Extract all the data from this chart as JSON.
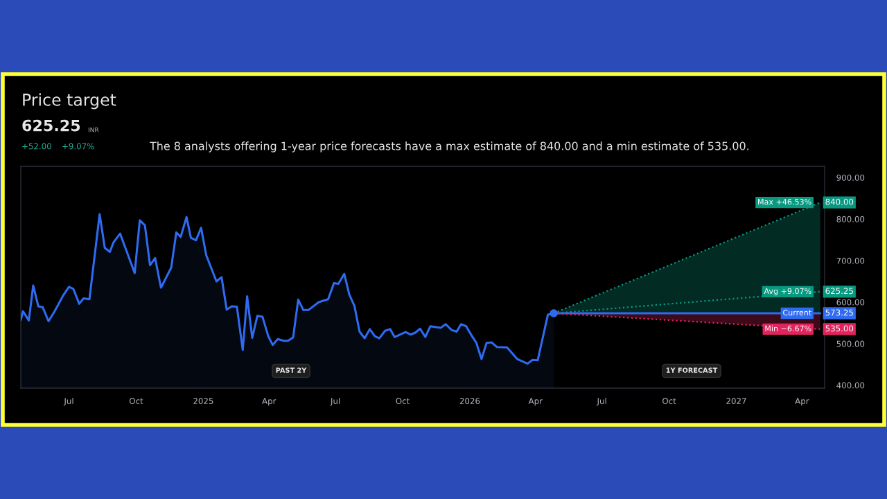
{
  "chart_data": {
    "type": "line",
    "title": "Price target",
    "legend": "right",
    "annotations": [
      "625.25",
      "INR",
      "+52.00",
      "+9.07%",
      "The 8 analysts offering 1-year price forecasts have a max estimate of 840.00 and a min estimate of 535.00.",
      "PAST 2Y",
      "1Y FORECAST"
    ],
    "xlim": [
      "2024-04-26",
      "2027-05-02"
    ],
    "xticks": [
      {
        "value": "2024-07-01",
        "label": "Jul"
      },
      {
        "value": "2024-10-01",
        "label": "Oct"
      },
      {
        "value": "2025-01-01",
        "label": "2025"
      },
      {
        "value": "2025-04-01",
        "label": "Apr"
      },
      {
        "value": "2025-07-01",
        "label": "Jul"
      },
      {
        "value": "2025-10-01",
        "label": "Oct"
      },
      {
        "value": "2026-01-01",
        "label": "2026"
      },
      {
        "value": "2026-04-01",
        "label": "Apr"
      },
      {
        "value": "2026-07-01",
        "label": "Jul"
      },
      {
        "value": "2026-10-01",
        "label": "Oct"
      },
      {
        "value": "2027-01-01",
        "label": "2027"
      },
      {
        "value": "2027-04-01",
        "label": "Apr"
      }
    ],
    "ylim": [
      393,
      927
    ],
    "yticks": [
      {
        "value": 400,
        "label": "400.00"
      },
      {
        "value": 500,
        "label": "500.00"
      },
      {
        "value": 600,
        "label": "600.00"
      },
      {
        "value": 700,
        "label": "700.00"
      },
      {
        "value": 800,
        "label": "800.00"
      },
      {
        "value": 900,
        "label": "900.00"
      }
    ],
    "series": [
      {
        "type": "area",
        "color": "#2f6bf0",
        "x": [
          "2024-04-26",
          "2024-04-29",
          "2024-05-07",
          "2024-05-13",
          "2024-05-20",
          "2024-05-26",
          "2024-06-03",
          "2024-06-11",
          "2024-06-23",
          "2024-07-01",
          "2024-07-07",
          "2024-07-15",
          "2024-07-21",
          "2024-07-29",
          "2024-08-12",
          "2024-08-19",
          "2024-08-26",
          "2024-08-31",
          "2024-09-09",
          "2024-09-29",
          "2024-10-06",
          "2024-10-13",
          "2024-10-20",
          "2024-10-27",
          "2024-11-04",
          "2024-11-18",
          "2024-11-25",
          "2024-12-01",
          "2024-12-09",
          "2024-12-15",
          "2024-12-22",
          "2024-12-29",
          "2025-01-05",
          "2025-01-19",
          "2025-01-26",
          "2025-02-02",
          "2025-02-09",
          "2025-02-16",
          "2025-02-24",
          "2025-03-02",
          "2025-03-09",
          "2025-03-16",
          "2025-03-23",
          "2025-03-31",
          "2025-04-06",
          "2025-04-13",
          "2025-04-21",
          "2025-04-27",
          "2025-05-04",
          "2025-05-11",
          "2025-05-18",
          "2025-05-25",
          "2025-06-08",
          "2025-06-21",
          "2025-06-29",
          "2025-07-05",
          "2025-07-13",
          "2025-07-20",
          "2025-07-27",
          "2025-08-03",
          "2025-08-10",
          "2025-08-17",
          "2025-08-24",
          "2025-08-30",
          "2025-09-07",
          "2025-09-14",
          "2025-09-20",
          "2025-10-05",
          "2025-10-12",
          "2025-10-18",
          "2025-10-25",
          "2025-11-01",
          "2025-11-08",
          "2025-11-22",
          "2025-11-29",
          "2025-12-07",
          "2025-12-14",
          "2025-12-20",
          "2025-12-27",
          "2026-01-03",
          "2026-01-10",
          "2026-01-17",
          "2026-01-24",
          "2026-01-31",
          "2026-02-07",
          "2026-02-21",
          "2026-03-07",
          "2026-03-21",
          "2026-03-28",
          "2026-04-04",
          "2026-04-18",
          "2026-04-26"
        ],
        "values": [
          557,
          578,
          556,
          640,
          590,
          588,
          554,
          577,
          616,
          637,
          632,
          596,
          609,
          607,
          812,
          731,
          721,
          744,
          765,
          670,
          797,
          785,
          689,
          706,
          635,
          683,
          768,
          757,
          805,
          755,
          749,
          779,
          713,
          650,
          660,
          582,
          590,
          589,
          485,
          614,
          514,
          567,
          565,
          518,
          497,
          511,
          507,
          507,
          515,
          606,
          581,
          581,
          600,
          607,
          646,
          644,
          668,
          618,
          591,
          529,
          513,
          535,
          518,
          513,
          531,
          535,
          516,
          528,
          522,
          526,
          536,
          516,
          542,
          538,
          547,
          533,
          529,
          547,
          542,
          521,
          502,
          463,
          502,
          503,
          492,
          491,
          463,
          452,
          461,
          460,
          570,
          573.25
        ]
      },
      {
        "type": "scatter",
        "color": "#2f6bf0",
        "marker": "circle",
        "x": [
          "2026-04-26"
        ],
        "values": [
          573.25
        ]
      },
      {
        "name": "Max +46.53%",
        "color": "#089981",
        "line_style": "dotted",
        "x": [
          "2026-04-26",
          "2027-04-26"
        ],
        "values": [
          573.25,
          840
        ],
        "lower": [
          573.25,
          573.25
        ],
        "upper": [
          573.25,
          840
        ],
        "value_labels": [
          null,
          "840.00"
        ]
      },
      {
        "name": "Avg +9.07%",
        "color": "#089981",
        "line_style": "dotted",
        "x": [
          "2026-04-26",
          "2027-04-26"
        ],
        "values": [
          573.25,
          625.25
        ],
        "value_labels": [
          null,
          "625.25"
        ]
      },
      {
        "name": "Current",
        "color": "#2f6bf0",
        "line_style": "solid",
        "x": [
          "2026-04-26",
          "2027-04-26"
        ],
        "values": [
          573.25,
          573.25
        ],
        "value_labels": [
          null,
          "573.25"
        ]
      },
      {
        "name": "Min −6.67%",
        "color": "#e0245e",
        "line_style": "dotted",
        "x": [
          "2026-04-26",
          "2027-04-26"
        ],
        "values": [
          573.25,
          535
        ],
        "lower": [
          573.25,
          535
        ],
        "upper": [
          573.25,
          573.25
        ],
        "value_labels": [
          null,
          "535.00"
        ]
      }
    ]
  }
}
